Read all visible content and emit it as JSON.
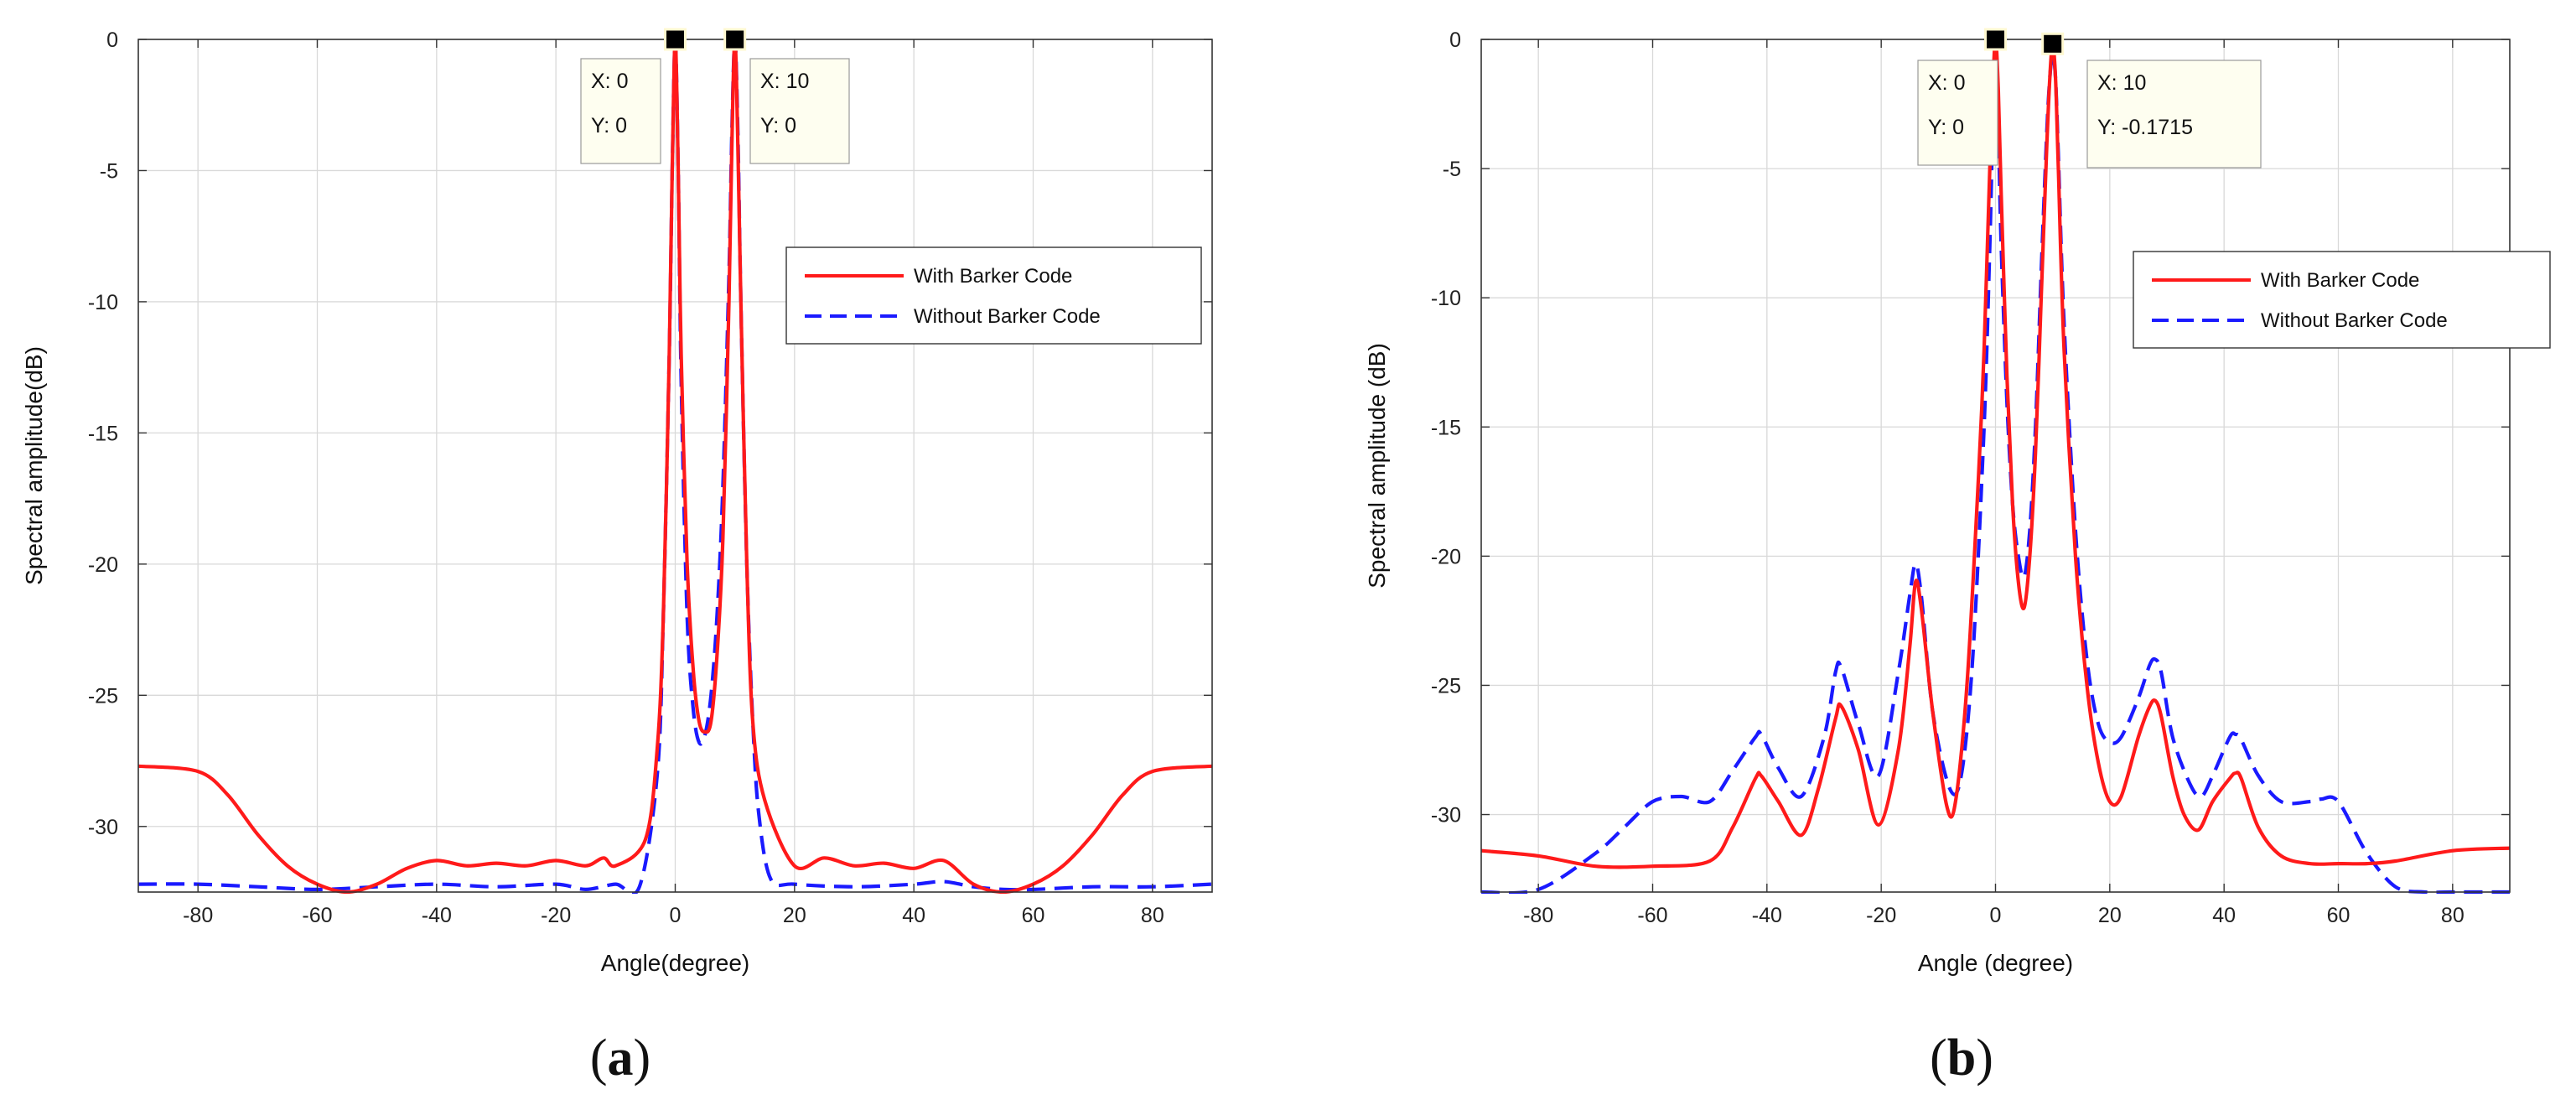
{
  "colors": {
    "with": "#ff1a1a",
    "without": "#1a1aff",
    "grid": "#d9d9d9",
    "tip_bg": "#fefef0"
  },
  "chart_data": [
    {
      "type": "line",
      "panel": "a",
      "xlabel": "Angle(degree)",
      "ylabel": "Spectral amplitude(dB)",
      "xlim": [
        -90,
        90
      ],
      "ylim": [
        -32.5,
        0
      ],
      "xticks": [
        -80,
        -60,
        -40,
        -20,
        0,
        20,
        40,
        60,
        80
      ],
      "yticks": [
        0,
        -5,
        -10,
        -15,
        -20,
        -25,
        -30
      ],
      "grid": true,
      "legend": {
        "placement": "right-upper",
        "entries": [
          "With Barker Code",
          "Without Barker Code"
        ]
      },
      "datatips": [
        {
          "x_label": "X: 0",
          "y_label": "Y: 0",
          "x": 0,
          "y": 0
        },
        {
          "x_label": "X: 10",
          "y_label": "Y: 0",
          "x": 10,
          "y": 0
        }
      ],
      "series": [
        {
          "name": "With Barker Code",
          "style": "solid",
          "x": [
            -90,
            -80,
            -75,
            -70,
            -65,
            -60,
            -55,
            -50,
            -45,
            -40,
            -35,
            -30,
            -25,
            -20,
            -15,
            -12,
            -10,
            -5,
            -3,
            -2,
            -1,
            -0.5,
            0,
            0.5,
            1,
            2,
            3,
            4,
            5,
            6,
            7,
            8,
            9,
            9.5,
            10,
            10.5,
            11,
            12,
            13,
            15,
            20,
            25,
            30,
            35,
            40,
            45,
            50,
            55,
            60,
            65,
            70,
            75,
            80,
            90
          ],
          "y": [
            -27.7,
            -27.9,
            -28.8,
            -30.3,
            -31.5,
            -32.2,
            -32.5,
            -32.2,
            -31.6,
            -31.3,
            -31.5,
            -31.4,
            -31.5,
            -31.3,
            -31.5,
            -31.2,
            -31.5,
            -30.5,
            -27,
            -22,
            -12,
            -5,
            0,
            -5,
            -12,
            -20,
            -24,
            -26,
            -26.4,
            -26,
            -23.5,
            -19,
            -10,
            -4,
            0,
            -4,
            -10,
            -20,
            -26,
            -29,
            -31.5,
            -31.2,
            -31.5,
            -31.4,
            -31.6,
            -31.3,
            -32.2,
            -32.5,
            -32.2,
            -31.5,
            -30.3,
            -28.8,
            -27.9,
            -27.7
          ]
        },
        {
          "name": "Without Barker Code",
          "style": "dashed",
          "x": [
            -90,
            -80,
            -70,
            -60,
            -50,
            -40,
            -30,
            -20,
            -15,
            -10,
            -6,
            -3,
            -2,
            -1,
            -0.5,
            0,
            0.5,
            1,
            2,
            3,
            4,
            5,
            6,
            7,
            8,
            9,
            9.5,
            10,
            10.5,
            11,
            12,
            13,
            14,
            16,
            20,
            30,
            40,
            45,
            50,
            55,
            60,
            70,
            80,
            90
          ],
          "y": [
            -32.2,
            -32.2,
            -32.3,
            -32.4,
            -32.3,
            -32.2,
            -32.3,
            -32.2,
            -32.4,
            -32.2,
            -32.3,
            -28,
            -22,
            -12,
            -5,
            0,
            -5,
            -13,
            -22,
            -25.5,
            -26.8,
            -26.5,
            -25,
            -22,
            -17,
            -9,
            -3.5,
            0,
            -3.5,
            -10,
            -20,
            -26,
            -29.5,
            -32,
            -32.2,
            -32.3,
            -32.2,
            -32.1,
            -32.3,
            -32.4,
            -32.4,
            -32.3,
            -32.3,
            -32.2
          ]
        }
      ]
    },
    {
      "type": "line",
      "panel": "b",
      "xlabel": "Angle (degree)",
      "ylabel": "Spectral amplitude (dB)",
      "xlim": [
        -90,
        90
      ],
      "ylim": [
        -33,
        0
      ],
      "xticks": [
        -80,
        -60,
        -40,
        -20,
        0,
        20,
        40,
        60,
        80
      ],
      "yticks": [
        0,
        -5,
        -10,
        -15,
        -20,
        -25,
        -30
      ],
      "grid": true,
      "legend": {
        "placement": "right-upper",
        "entries": [
          "With Barker Code",
          "Without Barker Code"
        ]
      },
      "datatips": [
        {
          "x_label": "X: 0",
          "y_label": "Y: 0",
          "x": 0,
          "y": 0
        },
        {
          "x_label": "X: 10",
          "y_label": "Y: -0.1715",
          "x": 10,
          "y": -0.1715
        }
      ],
      "series": [
        {
          "name": "With Barker Code",
          "style": "solid",
          "x": [
            -90,
            -80,
            -70,
            -60,
            -50,
            -46,
            -42,
            -41,
            -38,
            -34,
            -31,
            -28,
            -27,
            -24,
            -20.5,
            -17,
            -15,
            -14,
            -13,
            -11,
            -8.5,
            -7,
            -5,
            -3,
            -2,
            -1,
            -0.5,
            0,
            0.5,
            1,
            2,
            3,
            4,
            5,
            6,
            7,
            8,
            9,
            9.5,
            10,
            10.5,
            11,
            12,
            14,
            16,
            18,
            20,
            22,
            25,
            27,
            28,
            29,
            31,
            33,
            35.5,
            38,
            41,
            42,
            43,
            46,
            50,
            55,
            60,
            65,
            70,
            80,
            90
          ],
          "y": [
            -31.4,
            -31.6,
            -32,
            -32,
            -31.8,
            -30.5,
            -28.6,
            -28.5,
            -29.5,
            -30.8,
            -29,
            -26.3,
            -25.8,
            -27.5,
            -30.4,
            -27.5,
            -23.5,
            -21,
            -22,
            -26,
            -29.7,
            -29.5,
            -25,
            -17,
            -12,
            -5,
            -2,
            0,
            -2,
            -6,
            -13,
            -18,
            -21,
            -22,
            -20,
            -16,
            -10,
            -4,
            -1.5,
            -0.2,
            -1.5,
            -5,
            -12,
            -20,
            -25,
            -28,
            -29.5,
            -29.3,
            -27,
            -25.8,
            -25.6,
            -26.2,
            -28.5,
            -30,
            -30.6,
            -29.5,
            -28.6,
            -28.4,
            -28.6,
            -30.5,
            -31.6,
            -31.9,
            -31.9,
            -31.9,
            -31.8,
            -31.4,
            -31.3
          ]
        },
        {
          "name": "Without Barker Code",
          "style": "dashed",
          "x": [
            -90,
            -80,
            -70,
            -65,
            -60,
            -55,
            -50,
            -46,
            -42,
            -41,
            -38,
            -34,
            -30,
            -28,
            -27,
            -24,
            -20.5,
            -17,
            -15,
            -14,
            -13,
            -11,
            -8,
            -6,
            -4,
            -2,
            -1,
            -0.5,
            0,
            0.5,
            1,
            2,
            3,
            4,
            5,
            6,
            7,
            8,
            9,
            9.5,
            10,
            10.5,
            11,
            12,
            14,
            16,
            18,
            20,
            22,
            25,
            27,
            28,
            29,
            31,
            34,
            36,
            38,
            41,
            42,
            43,
            46,
            50,
            55,
            57,
            60,
            65,
            70,
            75,
            80,
            90
          ],
          "y": [
            -33,
            -32.9,
            -31.5,
            -30.5,
            -29.5,
            -29.3,
            -29.5,
            -28.3,
            -27,
            -26.9,
            -28.2,
            -29.3,
            -27,
            -24.5,
            -24.3,
            -26.5,
            -28.5,
            -24.5,
            -21.5,
            -20.3,
            -21.5,
            -26,
            -29,
            -28.5,
            -24,
            -15,
            -8,
            -3.5,
            -0.2,
            -3.5,
            -8,
            -14,
            -18,
            -20,
            -20.8,
            -19,
            -15,
            -9,
            -3.5,
            -1.5,
            -0.6,
            -1.5,
            -4.5,
            -11,
            -19,
            -24,
            -26.5,
            -27.2,
            -27,
            -25.5,
            -24.2,
            -24,
            -24.5,
            -27,
            -28.8,
            -29.3,
            -28.5,
            -27,
            -26.9,
            -27.1,
            -28.5,
            -29.5,
            -29.5,
            -29.4,
            -29.5,
            -31.5,
            -32.8,
            -33,
            -33,
            -33
          ]
        }
      ]
    }
  ],
  "panel_labels": {
    "a": {
      "open": "(",
      "letter": "a",
      "close": ")"
    },
    "b": {
      "open": "(",
      "letter": "b",
      "close": ")"
    }
  }
}
